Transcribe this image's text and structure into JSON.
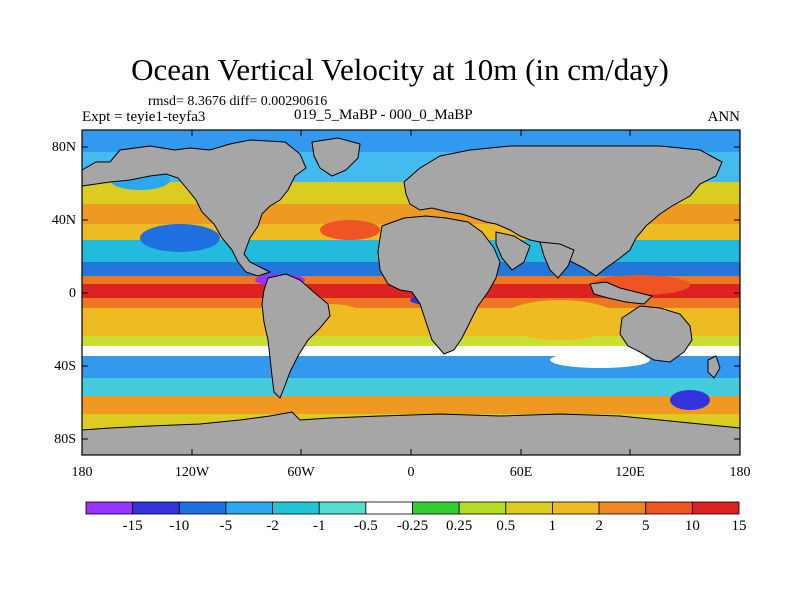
{
  "title": "Ocean Vertical Velocity at 10m (in cm/day)",
  "stats": "rmsd= 8.3676 diff= 0.00290616",
  "left_label": "Expt = teyie1-teyfa3",
  "center_label": "019_5_MaBP - 000_0_MaBP",
  "right_label": "ANN",
  "map": {
    "projection": "cylindrical equidistant",
    "lon_range": [
      -180,
      180
    ],
    "lat_range": [
      -90,
      90
    ],
    "land_fill": "#a6a6a6",
    "y_ticks": [
      "80N",
      "40N",
      "0",
      "40S",
      "80S"
    ],
    "x_ticks": [
      "180",
      "120W",
      "60W",
      "0",
      "60E",
      "120E",
      "180"
    ]
  },
  "colorbar": {
    "colors": [
      "#9933ff",
      "#3333dd",
      "#1f6fe0",
      "#2ba7f0",
      "#22c5d5",
      "#55ddcc",
      "#ffffff",
      "#33cc33",
      "#b4dd22",
      "#dccc22",
      "#eebb22",
      "#ee8822",
      "#ee5522",
      "#dd2222"
    ],
    "labels": [
      "-15",
      "-10",
      "-5",
      "-2",
      "-1",
      "-0.5",
      "-0.25",
      "0.25",
      "0.5",
      "1",
      "2",
      "5",
      "10",
      "15"
    ]
  }
}
